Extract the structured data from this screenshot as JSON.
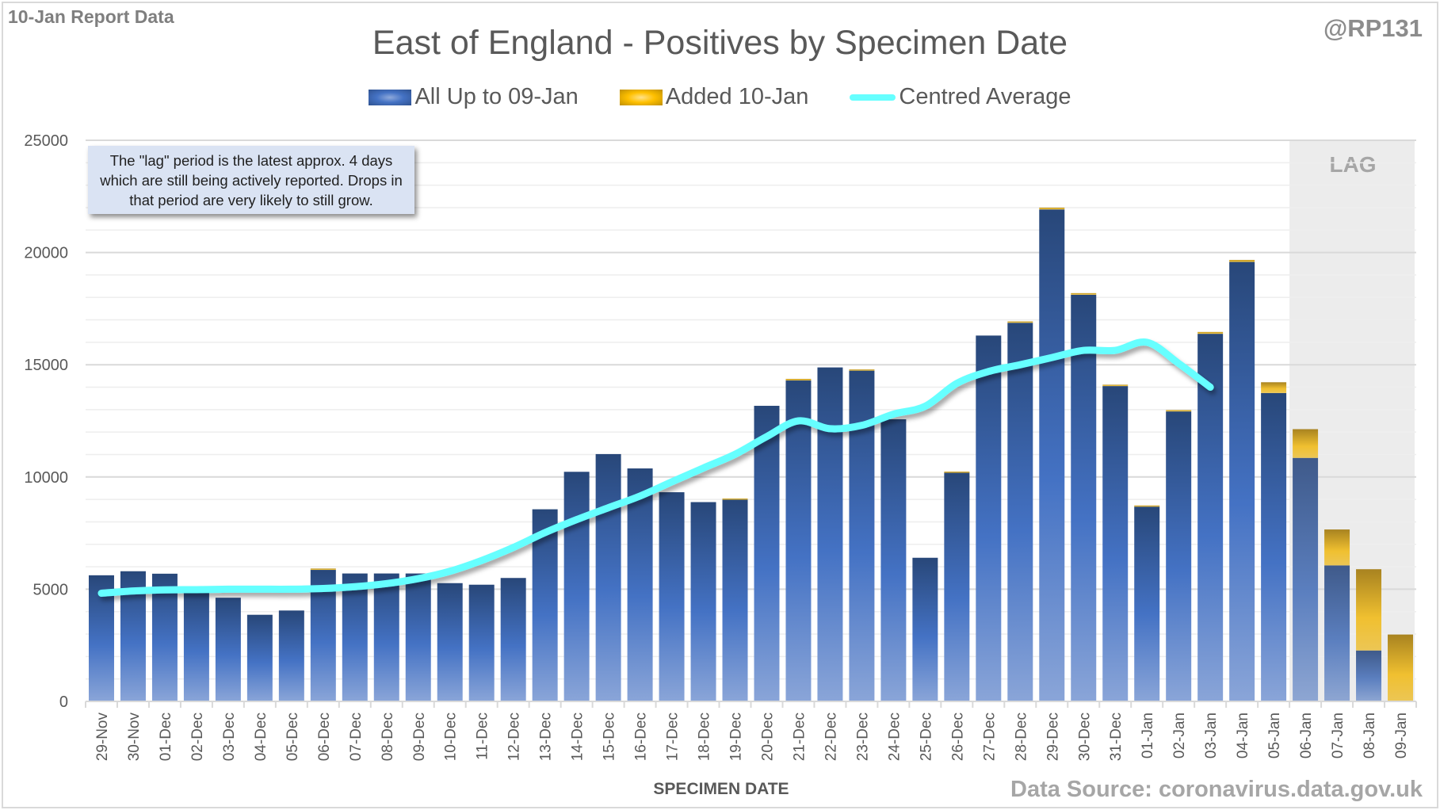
{
  "header": {
    "report_label": "10-Jan Report Data",
    "author": "@RP131",
    "title": "East of England - Positives by Specimen Date"
  },
  "legend": [
    {
      "label": "All Up to 09-Jan",
      "color": "#4472c4"
    },
    {
      "label": "Added 10-Jan",
      "color": "#ffc000"
    },
    {
      "label": "Centred Average",
      "color": "#66ffff"
    }
  ],
  "annotation": {
    "text": "The \"lag\" period is the latest approx. 4 days which are still being actively reported.  Drops in that period are very likely to still grow."
  },
  "lag": {
    "label": "LAG",
    "start": "06-Jan",
    "end": "09-Jan",
    "color": "#ececec"
  },
  "footer": {
    "xtitle": "SPECIMEN DATE",
    "source": "Data Source: coronavirus.data.gov.uk"
  },
  "chart_data": {
    "type": "bar",
    "stacked": true,
    "title": "East of England - Positives by Specimen Date",
    "xlabel": "SPECIMEN DATE",
    "ylabel": "",
    "ylim": [
      0,
      25000
    ],
    "yticks": [
      0,
      5000,
      10000,
      15000,
      20000,
      25000
    ],
    "minor_grid_step": 1000,
    "grid": true,
    "legend_position": "top-center",
    "categories": [
      "29-Nov",
      "30-Nov",
      "01-Dec",
      "02-Dec",
      "03-Dec",
      "04-Dec",
      "05-Dec",
      "06-Dec",
      "07-Dec",
      "08-Dec",
      "09-Dec",
      "10-Dec",
      "11-Dec",
      "12-Dec",
      "13-Dec",
      "14-Dec",
      "15-Dec",
      "16-Dec",
      "17-Dec",
      "18-Dec",
      "19-Dec",
      "20-Dec",
      "21-Dec",
      "22-Dec",
      "23-Dec",
      "24-Dec",
      "25-Dec",
      "26-Dec",
      "27-Dec",
      "28-Dec",
      "29-Dec",
      "30-Dec",
      "31-Dec",
      "01-Jan",
      "02-Jan",
      "03-Jan",
      "04-Jan",
      "05-Jan",
      "06-Jan",
      "07-Jan",
      "08-Jan",
      "09-Jan"
    ],
    "series": [
      {
        "name": "All Up to 09-Jan",
        "type": "bar",
        "color": "#4472c4",
        "values": [
          5620,
          5800,
          5690,
          4950,
          4620,
          3860,
          4050,
          5860,
          5700,
          5700,
          5700,
          5270,
          5200,
          5500,
          8560,
          10230,
          11020,
          10380,
          9320,
          8880,
          9000,
          13170,
          14300,
          14880,
          14740,
          12570,
          6400,
          10200,
          16300,
          16870,
          21920,
          18120,
          14050,
          8680,
          12920,
          16380,
          19580,
          13740,
          10850,
          6060,
          2270,
          0
        ]
      },
      {
        "name": "Added 10-Jan",
        "type": "bar",
        "color": "#ffc000",
        "values": [
          0,
          0,
          0,
          0,
          0,
          0,
          0,
          60,
          0,
          0,
          0,
          0,
          0,
          0,
          0,
          0,
          0,
          0,
          0,
          0,
          40,
          0,
          70,
          0,
          50,
          0,
          0,
          40,
          0,
          60,
          80,
          70,
          60,
          50,
          60,
          80,
          90,
          480,
          1280,
          1600,
          3620,
          2980
        ]
      },
      {
        "name": "Centred Average",
        "type": "line",
        "color": "#66ffff",
        "values": [
          4820,
          4920,
          4970,
          4980,
          5000,
          5000,
          5000,
          5030,
          5110,
          5250,
          5470,
          5800,
          6280,
          6860,
          7520,
          8100,
          8630,
          9150,
          9780,
          10400,
          11010,
          11800,
          12500,
          12150,
          12300,
          12800,
          13150,
          14170,
          14700,
          15000,
          15320,
          15640,
          15640,
          16000,
          15060,
          14000,
          null,
          null,
          null,
          null,
          null,
          null
        ]
      }
    ]
  }
}
